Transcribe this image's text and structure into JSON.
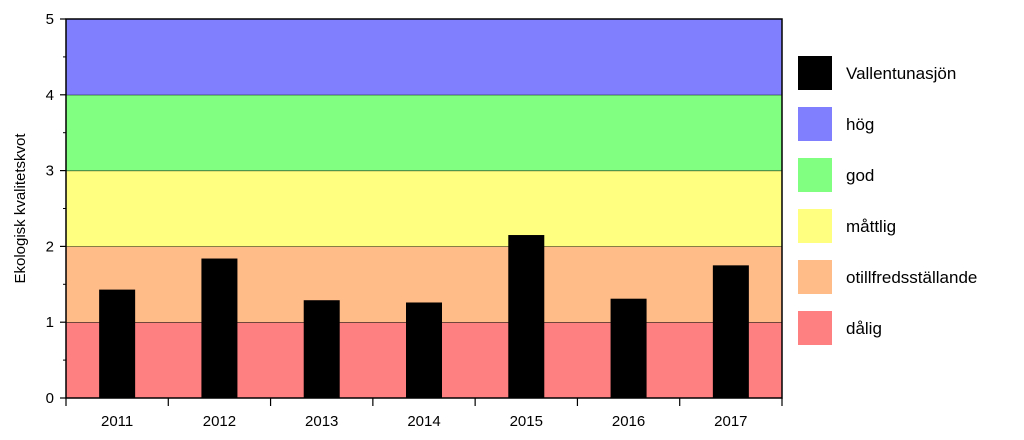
{
  "chart_data": {
    "type": "bar",
    "title": "",
    "xlabel": "",
    "ylabel": "Ekologisk kvalitetskvot",
    "ylim": [
      0,
      5
    ],
    "yticks": [
      0,
      1,
      2,
      3,
      4,
      5
    ],
    "categories": [
      "2011",
      "2012",
      "2013",
      "2014",
      "2015",
      "2016",
      "2017"
    ],
    "series": [
      {
        "name": "Vallentunasjön",
        "color": "#000000",
        "values": [
          1.43,
          1.84,
          1.29,
          1.26,
          2.15,
          1.31,
          1.75
        ]
      }
    ],
    "bands": [
      {
        "name": "dålig",
        "from": 0,
        "to": 1,
        "color": "#ff8080"
      },
      {
        "name": "otillfredsställande",
        "from": 1,
        "to": 2,
        "color": "#ffbb88"
      },
      {
        "name": "måttlig",
        "from": 2,
        "to": 3,
        "color": "#ffff80"
      },
      {
        "name": "god",
        "from": 3,
        "to": 4,
        "color": "#80ff80"
      },
      {
        "name": "hög",
        "from": 4,
        "to": 5,
        "color": "#8080ff"
      }
    ],
    "legend": {
      "position": "right",
      "items": [
        {
          "label": "Vallentunasjön",
          "color": "#000000"
        },
        {
          "label": "hög",
          "color": "#8080ff"
        },
        {
          "label": "god",
          "color": "#80ff80"
        },
        {
          "label": "måttlig",
          "color": "#ffff80"
        },
        {
          "label": "otillfredsställande",
          "color": "#ffbb88"
        },
        {
          "label": "dålig",
          "color": "#ff8080"
        }
      ]
    },
    "grid": false
  }
}
